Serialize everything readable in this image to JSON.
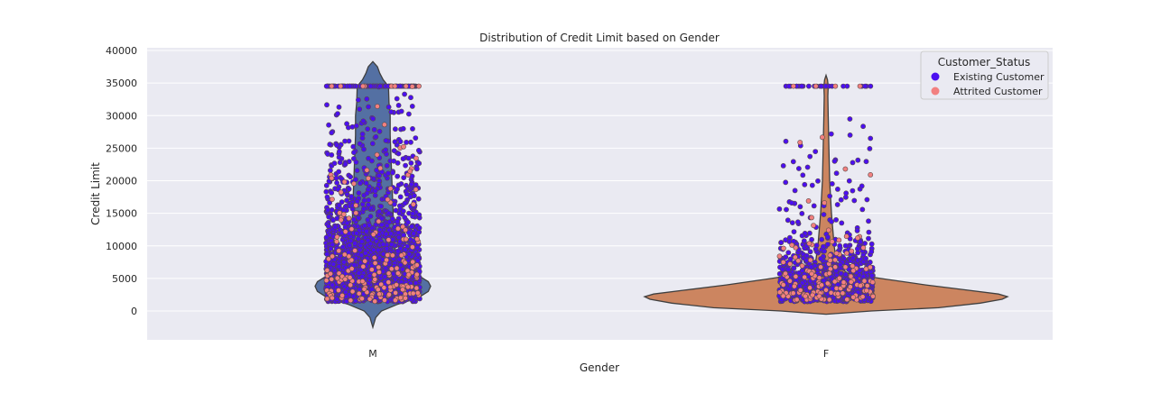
{
  "chart_data": {
    "type": "violin+strip",
    "title": "Distribution of Credit Limit based on Gender",
    "xlabel": "Gender",
    "ylabel": "Credit Limit",
    "ylim": [
      -4500,
      40000
    ],
    "yticks": [
      0,
      5000,
      10000,
      15000,
      20000,
      25000,
      30000,
      35000,
      40000
    ],
    "categories": [
      "M",
      "F"
    ],
    "grid": true,
    "legend": {
      "title": "Customer_Status",
      "placement": "upper right",
      "entries": [
        {
          "label": "Existing Customer",
          "color": "#4b0ff0"
        },
        {
          "label": "Attrited Customer",
          "color": "#f28080"
        }
      ]
    },
    "violins": [
      {
        "category": "M",
        "color": "#5470a3",
        "min": -2500,
        "max": 38300,
        "density": [
          [
            -2500,
            0.0
          ],
          [
            -1000,
            0.05
          ],
          [
            0,
            0.15
          ],
          [
            1000,
            0.42
          ],
          [
            2000,
            0.78
          ],
          [
            3000,
            0.96
          ],
          [
            3800,
            1.0
          ],
          [
            4500,
            0.96
          ],
          [
            5500,
            0.78
          ],
          [
            6500,
            0.55
          ],
          [
            7500,
            0.45
          ],
          [
            8500,
            0.4
          ],
          [
            10000,
            0.38
          ],
          [
            13000,
            0.36
          ],
          [
            20000,
            0.33
          ],
          [
            27000,
            0.3
          ],
          [
            30000,
            0.3
          ],
          [
            32000,
            0.28
          ],
          [
            34500,
            0.27
          ],
          [
            35500,
            0.18
          ],
          [
            36500,
            0.12
          ],
          [
            37500,
            0.08
          ],
          [
            38300,
            0.0
          ]
        ]
      },
      {
        "category": "F",
        "color": "#cc8560",
        "min": -500,
        "max": 36200,
        "density": [
          [
            -500,
            0.0
          ],
          [
            0,
            0.25
          ],
          [
            500,
            0.62
          ],
          [
            1200,
            0.85
          ],
          [
            1800,
            0.97
          ],
          [
            2200,
            1.0
          ],
          [
            2600,
            0.95
          ],
          [
            3200,
            0.78
          ],
          [
            4000,
            0.55
          ],
          [
            5000,
            0.3
          ],
          [
            5800,
            0.12
          ],
          [
            7000,
            0.06
          ],
          [
            10000,
            0.045
          ],
          [
            15000,
            0.03
          ],
          [
            20000,
            0.02
          ],
          [
            26000,
            0.015
          ],
          [
            30000,
            0.012
          ],
          [
            33000,
            0.01
          ],
          [
            34500,
            0.012
          ],
          [
            35500,
            0.008
          ],
          [
            36200,
            0.0
          ]
        ]
      }
    ],
    "strip_points": {
      "description_free": true,
      "groups": [
        {
          "category": "M",
          "existing_count": 2200,
          "attrited_count": 180,
          "clip_value": 34516,
          "min_value": 1438
        },
        {
          "category": "F",
          "existing_count": 950,
          "attrited_count": 150,
          "clip_value": 34516,
          "min_value": 1438
        }
      ]
    }
  }
}
